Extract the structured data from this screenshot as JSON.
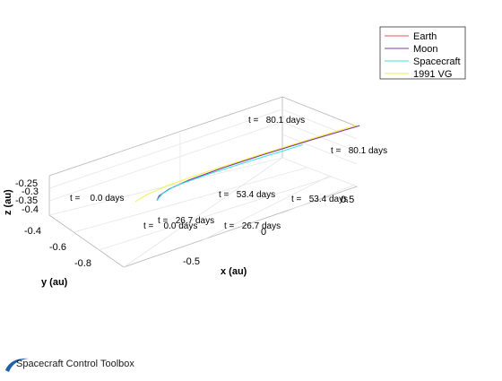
{
  "footer": {
    "text": "Spacecraft Control Toolbox",
    "logo_color": "#1f5ea8"
  },
  "chart_data": {
    "type": "line",
    "projection": "3d",
    "title": "",
    "xlabel": "x (au)",
    "ylabel": "y (au)",
    "zlabel": "z (au)",
    "x_ticks": [
      "-0.5",
      "0",
      "0.5"
    ],
    "y_ticks": [
      "-0.4",
      "-0.6",
      "-0.8"
    ],
    "z_ticks": [
      "-0.25",
      "-0.3",
      "-0.35",
      "-0.4"
    ],
    "grid": true,
    "legend_position": "top-right",
    "legend": [
      "Earth",
      "Moon",
      "Spacecraft",
      "1991 VG"
    ],
    "series": [
      {
        "name": "Earth",
        "color": "#e8554e",
        "x": [
          -0.78,
          -0.6,
          -0.4,
          -0.2,
          0.0,
          0.2,
          0.4,
          0.55
        ],
        "y": [
          -0.41,
          -0.52,
          -0.61,
          -0.66,
          -0.66,
          -0.62,
          -0.53,
          -0.44
        ],
        "z": [
          -0.35,
          -0.35,
          -0.35,
          -0.35,
          -0.35,
          -0.35,
          -0.35,
          -0.35
        ]
      },
      {
        "name": "Moon",
        "color": "#7b3fa0",
        "x": [
          -0.78,
          -0.6,
          -0.4,
          -0.2,
          0.0,
          0.2,
          0.4,
          0.55
        ],
        "y": [
          -0.41,
          -0.52,
          -0.61,
          -0.66,
          -0.66,
          -0.62,
          -0.53,
          -0.44
        ],
        "z": [
          -0.351,
          -0.352,
          -0.351,
          -0.352,
          -0.351,
          -0.352,
          -0.351,
          -0.352
        ]
      },
      {
        "name": "Spacecraft",
        "color": "#39e3e3",
        "x": [
          -0.78,
          -0.55,
          -0.35,
          -0.2,
          -0.1,
          -0.05,
          -0.02
        ],
        "y": [
          -0.41,
          -0.54,
          -0.62,
          -0.58,
          -0.48,
          -0.38,
          -0.3
        ],
        "z": [
          -0.35,
          -0.35,
          -0.34,
          -0.32,
          -0.29,
          -0.26,
          -0.23
        ]
      },
      {
        "name": "1991 VG",
        "color": "#f2f24a",
        "x": [
          -0.6,
          -0.4,
          -0.2,
          0.0,
          0.2,
          0.4,
          0.55
        ],
        "y": [
          -0.62,
          -0.7,
          -0.74,
          -0.72,
          -0.66,
          -0.56,
          -0.46
        ],
        "z": [
          -0.36,
          -0.36,
          -0.358,
          -0.355,
          -0.35,
          -0.34,
          -0.33
        ]
      }
    ],
    "annotations": [
      "t =    0.0 days",
      "t =   26.7 days",
      "t =   53.4 days",
      "t =   80.1 days",
      "t =    0.0 days",
      "t =   26.7 days",
      "t =   53.4 days",
      "t =   80.1 days"
    ]
  }
}
